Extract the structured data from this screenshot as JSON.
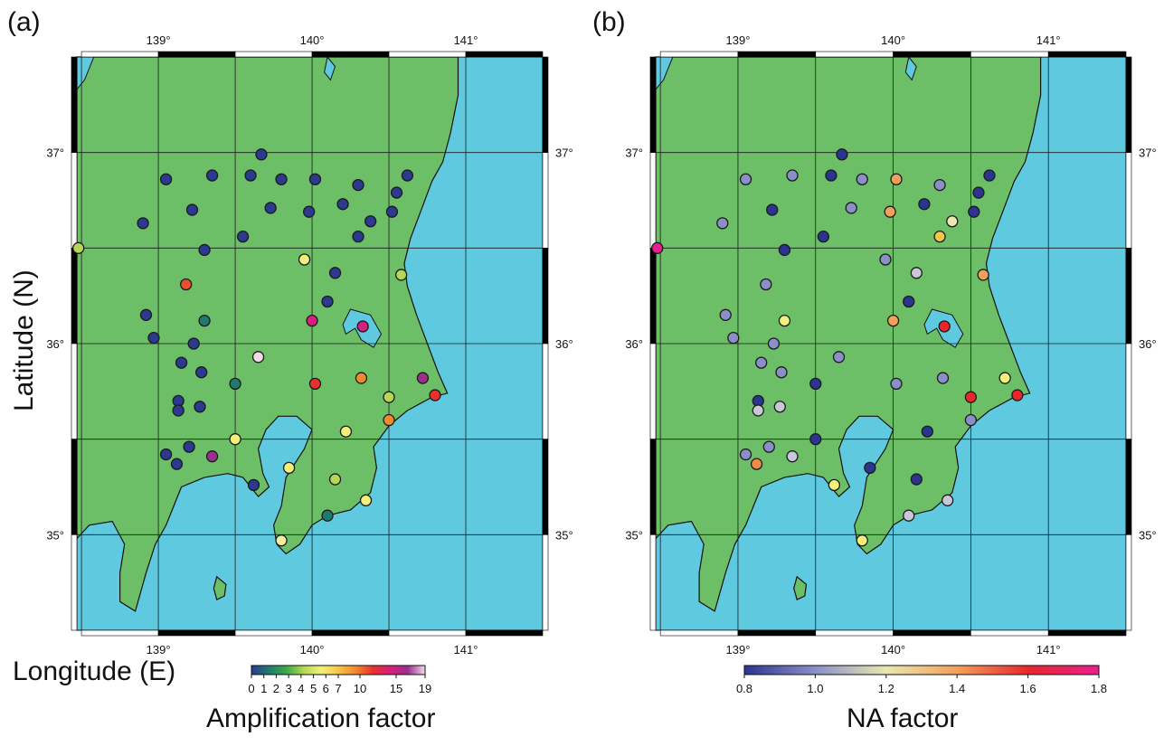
{
  "panels": [
    {
      "id": "a",
      "label": "(a)",
      "colorbar_title": "Amplification factor",
      "colorbar_ticks": [
        "0",
        "1",
        "2",
        "3",
        "4",
        "5",
        "6",
        "7",
        "10",
        "15",
        "19"
      ],
      "colorbar_colors": [
        "#2b3a8f",
        "#1f7a6e",
        "#3aa84a",
        "#b7d654",
        "#f2f07a",
        "#f6c64a",
        "#f08a2e",
        "#e8302c",
        "#d81e7e",
        "#9a2f8c",
        "#f2d9ea"
      ]
    },
    {
      "id": "b",
      "label": "(b)",
      "colorbar_title": "NA factor",
      "colorbar_ticks": [
        "0.8",
        "1.0",
        "1.2",
        "1.4",
        "1.6",
        "1.8"
      ],
      "colorbar_colors": [
        "#2b3590",
        "#8a8fc8",
        "#e8e8b0",
        "#f3a05a",
        "#e8262c",
        "#ea1f8f"
      ]
    }
  ],
  "axes": {
    "ylabel": "Latitude (N)",
    "xlabel": "Longitude (E)",
    "lon_ticks": [
      "139°",
      "140°",
      "141°"
    ],
    "lat_ticks": [
      "37°",
      "36°",
      "35°"
    ]
  },
  "colors": {
    "land": "#6cbf66",
    "sea": "#5fc9e0",
    "station_outline": "#1a1a1a"
  },
  "stations": [
    {
      "lon": 139.67,
      "lat": 36.99,
      "amp_color": "#2b3a8f",
      "na_color": "#2b3590"
    },
    {
      "lon": 139.05,
      "lat": 36.86,
      "amp_color": "#2b3a8f",
      "na_color": "#8a8fc8"
    },
    {
      "lon": 139.35,
      "lat": 36.88,
      "amp_color": "#2b3a8f",
      "na_color": "#8a8fc8"
    },
    {
      "lon": 139.6,
      "lat": 36.88,
      "amp_color": "#2b3a8f",
      "na_color": "#2b3590"
    },
    {
      "lon": 139.8,
      "lat": 36.86,
      "amp_color": "#2b3a8f",
      "na_color": "#8a8fc8"
    },
    {
      "lon": 140.02,
      "lat": 36.86,
      "amp_color": "#2b3a8f",
      "na_color": "#f3a05a"
    },
    {
      "lon": 140.3,
      "lat": 36.83,
      "amp_color": "#2b3a8f",
      "na_color": "#8a8fc8"
    },
    {
      "lon": 140.62,
      "lat": 36.88,
      "amp_color": "#2b3a8f",
      "na_color": "#2b3590"
    },
    {
      "lon": 140.55,
      "lat": 36.79,
      "amp_color": "#2b3a8f",
      "na_color": "#2b3590"
    },
    {
      "lon": 139.22,
      "lat": 36.7,
      "amp_color": "#2b3a8f",
      "na_color": "#2b3590"
    },
    {
      "lon": 139.73,
      "lat": 36.71,
      "amp_color": "#2b3a8f",
      "na_color": "#8a8fc8"
    },
    {
      "lon": 139.98,
      "lat": 36.69,
      "amp_color": "#2b3a8f",
      "na_color": "#f3a05a"
    },
    {
      "lon": 140.2,
      "lat": 36.73,
      "amp_color": "#2b3a8f",
      "na_color": "#2b3590"
    },
    {
      "lon": 140.52,
      "lat": 36.69,
      "amp_color": "#2b3a8f",
      "na_color": "#2b3590"
    },
    {
      "lon": 138.9,
      "lat": 36.63,
      "amp_color": "#2b3a8f",
      "na_color": "#8a8fc8"
    },
    {
      "lon": 140.38,
      "lat": 36.64,
      "amp_color": "#2b3a8f",
      "na_color": "#e8e8b0"
    },
    {
      "lon": 139.55,
      "lat": 36.56,
      "amp_color": "#2b3a8f",
      "na_color": "#2b3590"
    },
    {
      "lon": 140.3,
      "lat": 36.56,
      "amp_color": "#2b3a8f",
      "na_color": "#f6c64a"
    },
    {
      "lon": 138.48,
      "lat": 36.5,
      "amp_color": "#b7d654",
      "na_color": "#ea1f8f"
    },
    {
      "lon": 139.3,
      "lat": 36.49,
      "amp_color": "#2b3a8f",
      "na_color": "#2b3590"
    },
    {
      "lon": 139.95,
      "lat": 36.44,
      "amp_color": "#f2f07a",
      "na_color": "#8a8fc8"
    },
    {
      "lon": 140.15,
      "lat": 36.37,
      "amp_color": "#2b3a8f",
      "na_color": "#c8c8d8"
    },
    {
      "lon": 140.58,
      "lat": 36.36,
      "amp_color": "#b7d654",
      "na_color": "#f3a05a"
    },
    {
      "lon": 139.18,
      "lat": 36.31,
      "amp_color": "#e8502c",
      "na_color": "#8a8fc8"
    },
    {
      "lon": 140.1,
      "lat": 36.22,
      "amp_color": "#2b3a8f",
      "na_color": "#2b3590"
    },
    {
      "lon": 138.92,
      "lat": 36.15,
      "amp_color": "#2b3a8f",
      "na_color": "#8a8fc8"
    },
    {
      "lon": 139.3,
      "lat": 36.12,
      "amp_color": "#1f7a6e",
      "na_color": "#f2f07a"
    },
    {
      "lon": 140.0,
      "lat": 36.12,
      "amp_color": "#d81e7e",
      "na_color": "#f3a05a"
    },
    {
      "lon": 140.33,
      "lat": 36.09,
      "amp_color": "#d81e7e",
      "na_color": "#e8262c"
    },
    {
      "lon": 138.97,
      "lat": 36.03,
      "amp_color": "#2b3a8f",
      "na_color": "#8a8fc8"
    },
    {
      "lon": 139.23,
      "lat": 36.0,
      "amp_color": "#2b3a8f",
      "na_color": "#8a8fc8"
    },
    {
      "lon": 139.15,
      "lat": 35.9,
      "amp_color": "#2b3a8f",
      "na_color": "#8a8fc8"
    },
    {
      "lon": 139.65,
      "lat": 35.93,
      "amp_color": "#f2d9ea",
      "na_color": "#8a8fc8"
    },
    {
      "lon": 139.28,
      "lat": 35.85,
      "amp_color": "#2b3a8f",
      "na_color": "#8a8fc8"
    },
    {
      "lon": 139.5,
      "lat": 35.79,
      "amp_color": "#1f7a6e",
      "na_color": "#2b3590"
    },
    {
      "lon": 140.02,
      "lat": 35.79,
      "amp_color": "#e8302c",
      "na_color": "#8a8fc8"
    },
    {
      "lon": 140.32,
      "lat": 35.82,
      "amp_color": "#f08a2e",
      "na_color": "#8a8fc8"
    },
    {
      "lon": 140.72,
      "lat": 35.82,
      "amp_color": "#9a2f8c",
      "na_color": "#f2f07a"
    },
    {
      "lon": 139.13,
      "lat": 35.7,
      "amp_color": "#2b3a8f",
      "na_color": "#2b3590"
    },
    {
      "lon": 139.13,
      "lat": 35.65,
      "amp_color": "#2b3a8f",
      "na_color": "#c8c8d8"
    },
    {
      "lon": 139.27,
      "lat": 35.67,
      "amp_color": "#2b3a8f",
      "na_color": "#c8c8d8"
    },
    {
      "lon": 140.5,
      "lat": 35.72,
      "amp_color": "#b7d654",
      "na_color": "#e8262c"
    },
    {
      "lon": 140.8,
      "lat": 35.73,
      "amp_color": "#e8302c",
      "na_color": "#e8262c"
    },
    {
      "lon": 140.5,
      "lat": 35.6,
      "amp_color": "#f08a2e",
      "na_color": "#8a8fc8"
    },
    {
      "lon": 140.22,
      "lat": 35.54,
      "amp_color": "#f2f07a",
      "na_color": "#2b3590"
    },
    {
      "lon": 139.5,
      "lat": 35.5,
      "amp_color": "#f2f07a",
      "na_color": "#2b3590"
    },
    {
      "lon": 139.2,
      "lat": 35.46,
      "amp_color": "#2b3a8f",
      "na_color": "#8a8fc8"
    },
    {
      "lon": 139.05,
      "lat": 35.42,
      "amp_color": "#2b3a8f",
      "na_color": "#8a8fc8"
    },
    {
      "lon": 139.12,
      "lat": 35.37,
      "amp_color": "#2b3a8f",
      "na_color": "#f08a4a"
    },
    {
      "lon": 139.35,
      "lat": 35.41,
      "amp_color": "#9a2f8c",
      "na_color": "#c8c8d8"
    },
    {
      "lon": 139.85,
      "lat": 35.35,
      "amp_color": "#f2f07a",
      "na_color": "#2b3590"
    },
    {
      "lon": 140.15,
      "lat": 35.29,
      "amp_color": "#b7d654",
      "na_color": "#2b3590"
    },
    {
      "lon": 139.62,
      "lat": 35.26,
      "amp_color": "#2b3a8f",
      "na_color": "#f2f07a"
    },
    {
      "lon": 140.35,
      "lat": 35.18,
      "amp_color": "#f2f07a",
      "na_color": "#c8c8d8"
    },
    {
      "lon": 140.1,
      "lat": 35.1,
      "amp_color": "#1f7a6e",
      "na_color": "#c8c8d8"
    },
    {
      "lon": 139.8,
      "lat": 34.97,
      "amp_color": "#f2f0a0",
      "na_color": "#f2f07a"
    }
  ]
}
